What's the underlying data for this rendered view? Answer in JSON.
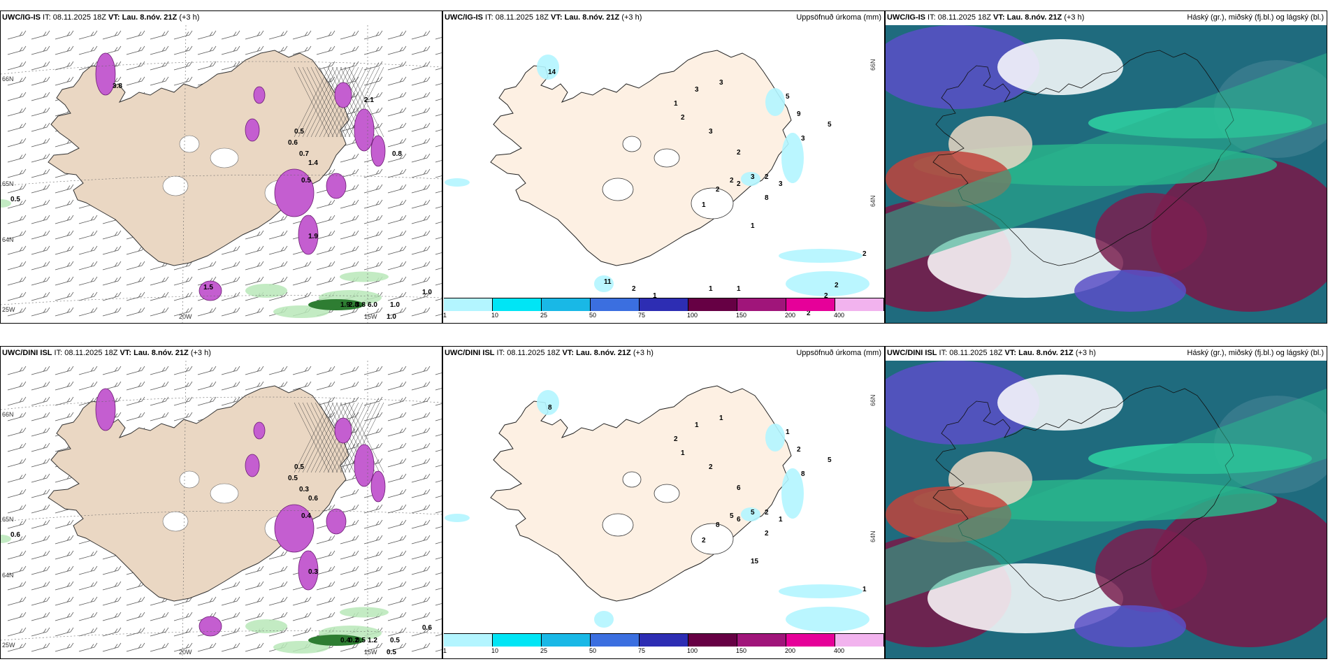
{
  "panels": [
    {
      "model": "UWC/IG-IS",
      "it_label": "IT:",
      "it": "08.11.2025 18Z",
      "vt_label": "VT:",
      "vt": "Lau. 8.nóv. 21Z",
      "step": "(+3 h)",
      "right_title": "",
      "kind": "wind",
      "labels": [
        "0.5",
        "1.0",
        "1.0",
        "1.0",
        "1.9",
        "2.8",
        "3.8",
        "6.0",
        "0.5",
        "0.6",
        "0.7",
        "1.4",
        "0.5",
        "1.9",
        "1.5",
        "0.8",
        "2.1",
        "3.8"
      ],
      "lon_labels": [
        "20W",
        "15W"
      ],
      "lat_labels": [
        "66N",
        "64N",
        "65N",
        "25W"
      ]
    },
    {
      "model": "UWC/IG-IS",
      "it_label": "IT:",
      "it": "08.11.2025 18Z",
      "vt_label": "VT:",
      "vt": "Lau. 8.nóv. 21Z",
      "step": "(+3 h)",
      "right_title": "Uppsöfnuð úrkoma (mm)",
      "kind": "precip",
      "labels": [
        "14",
        "3",
        "3",
        "1",
        "2",
        "3",
        "5",
        "9",
        "5",
        "3",
        "2",
        "3",
        "2",
        "2",
        "2",
        "3",
        "8",
        "2",
        "1",
        "1",
        "2",
        "11",
        "2",
        "1",
        "1",
        "1",
        "2",
        "2",
        "2",
        "2"
      ],
      "lon_labels": [],
      "lat_labels": [
        "66N",
        "64N"
      ]
    },
    {
      "model": "UWC/IG-IS",
      "it_label": "IT:",
      "it": "08.11.2025 18Z",
      "vt_label": "VT:",
      "vt": "Lau. 8.nóv. 21Z",
      "step": "(+3 h)",
      "right_title": "Háský (gr.), miðský (fj.bl.) og lágský (bl.)",
      "kind": "cloud",
      "labels": [],
      "lon_labels": [],
      "lat_labels": []
    },
    {
      "model": "UWC/DINI ISL",
      "it_label": "IT:",
      "it": "08.11.2025 18Z",
      "vt_label": "VT:",
      "vt": "Lau. 8.nóv. 21Z",
      "step": "(+3 h)",
      "right_title": "",
      "kind": "wind",
      "labels": [
        "0.6",
        "0.6",
        "0.5",
        "0.5",
        "0.4",
        "0.2",
        "0.5",
        "1.2",
        "0.5",
        "0.5",
        "0.3",
        "0.6",
        "0.4",
        "0.3"
      ],
      "lon_labels": [
        "20W",
        "15W"
      ],
      "lat_labels": [
        "66N",
        "64N",
        "65N",
        "25W"
      ]
    },
    {
      "model": "UWC/DINI ISL",
      "it_label": "IT:",
      "it": "08.11.2025 18Z",
      "vt_label": "VT:",
      "vt": "Lau. 8.nóv. 21Z",
      "step": "(+3 h)",
      "right_title": "Uppsöfnuð úrkoma (mm)",
      "kind": "precip",
      "labels": [
        "8",
        "1",
        "1",
        "2",
        "1",
        "2",
        "1",
        "2",
        "5",
        "8",
        "6",
        "5",
        "5",
        "6",
        "8",
        "1",
        "2",
        "2",
        "2",
        "15",
        "1"
      ],
      "lon_labels": [],
      "lat_labels": [
        "66N",
        "64N"
      ]
    },
    {
      "model": "UWC/DINI ISL",
      "it_label": "IT:",
      "it": "08.11.2025 18Z",
      "vt_label": "VT:",
      "vt": "Lau. 8.nóv. 21Z",
      "step": "(+3 h)",
      "right_title": "Háský (gr.), miðský (fj.bl.) og lágský (bl.)",
      "kind": "cloud",
      "labels": [],
      "lon_labels": [],
      "lat_labels": []
    }
  ],
  "colorbar": {
    "ticks": [
      "1",
      "10",
      "25",
      "50",
      "75",
      "100",
      "150",
      "200",
      "400"
    ],
    "colors": [
      "#b3f5ff",
      "#00e5f5",
      "#19b8e6",
      "#3b6fe0",
      "#2d2db3",
      "#660044",
      "#a0157a",
      "#e60099",
      "#f2b3ee"
    ]
  }
}
